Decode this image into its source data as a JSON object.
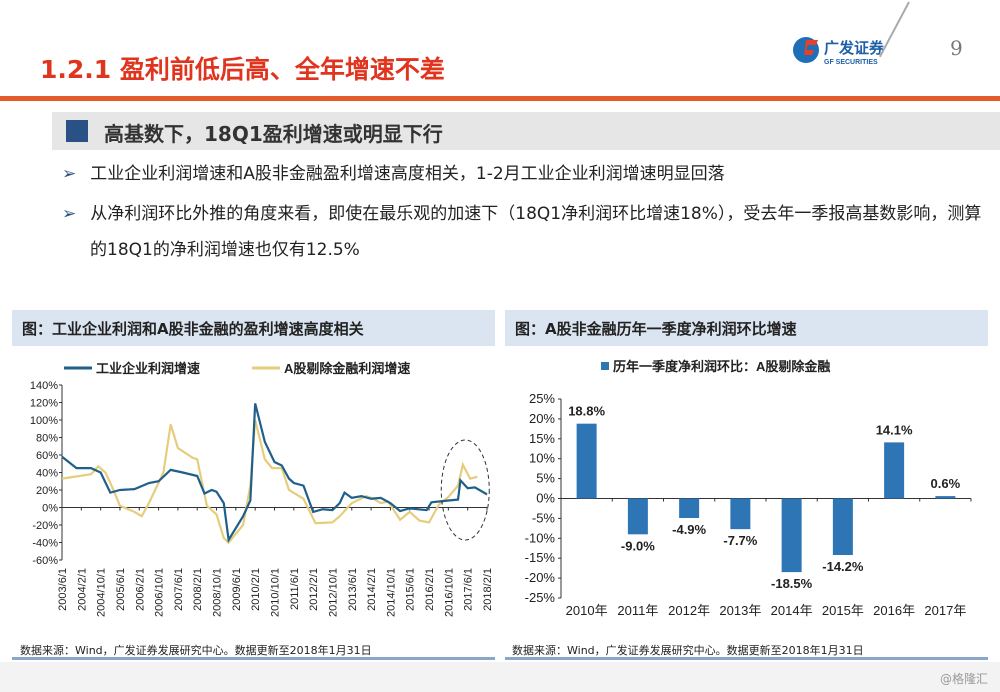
{
  "header": {
    "title": "1.2.1 盈利前低后高、全年增速不差",
    "page_number": "9",
    "logo_cn": "广发证券",
    "logo_en": "GF SECURITIES"
  },
  "section": {
    "heading": "高基数下，18Q1盈利增速或明显下行"
  },
  "bullets": [
    "工业企业利润增速和A股非金融盈利增速高度相关，1-2月工业企业利润增速明显回落",
    "从净利润环比外推的角度来看，即使在最乐观的加速下（18Q1净利润环比增速18%），受去年一季报高基数影响，测算的18Q1的净利润增速也仅有12.5%"
  ],
  "left_panel": {
    "title": "图：工业企业利润和A股非金融的盈利增速高度相关",
    "source": "数据来源：Wind，广发证券发展研究中心。数据更新至2018年1月31日"
  },
  "right_panel": {
    "title": "图：A股非金融历年一季度净利润环比增速",
    "source": "数据来源：Wind，广发证券发展研究中心。数据更新至2018年1月31日"
  },
  "watermark": "@格隆汇",
  "colors": {
    "accent": "#e0341e",
    "blue": "#1f5f8b",
    "yellow": "#e6cd7e",
    "bar": "#2e75b6"
  },
  "chart_data": [
    {
      "type": "line",
      "legend_position": "top",
      "x_ticks": [
        "2003/6/1",
        "2004/2/1",
        "2004/10/1",
        "2005/6/1",
        "2006/2/1",
        "2006/10/1",
        "2007/6/1",
        "2008/2/1",
        "2008/10/1",
        "2009/6/1",
        "2010/2/1",
        "2010/10/1",
        "2011/6/1",
        "2012/2/1",
        "2012/10/1",
        "2013/6/1",
        "2014/2/1",
        "2014/10/1",
        "2015/6/1",
        "2016/2/1",
        "2016/10/1",
        "2017/6/1",
        "2018/2/1"
      ],
      "y_ticks": [
        "140%",
        "120%",
        "100%",
        "80%",
        "60%",
        "40%",
        "20%",
        "0%",
        "-20%",
        "-40%",
        "-60%"
      ],
      "ylim": [
        -60,
        140
      ],
      "annotation": "dashed ellipse around 2016/10–2018/2",
      "series": [
        {
          "name": "工业企业利润增速",
          "color": "#1f5f8b",
          "points": [
            [
              "2003-06",
              58
            ],
            [
              "2003-12",
              45
            ],
            [
              "2004-06",
              45
            ],
            [
              "2004-10",
              40
            ],
            [
              "2005-02",
              17
            ],
            [
              "2005-06",
              20
            ],
            [
              "2005-12",
              21
            ],
            [
              "2006-06",
              28
            ],
            [
              "2006-10",
              30
            ],
            [
              "2007-03",
              43
            ],
            [
              "2007-08",
              40
            ],
            [
              "2008-02",
              36
            ],
            [
              "2008-05",
              16
            ],
            [
              "2008-08",
              20
            ],
            [
              "2008-10",
              18
            ],
            [
              "2009-01",
              5
            ],
            [
              "2009-03",
              -37
            ],
            [
              "2009-09",
              -10
            ],
            [
              "2009-12",
              8
            ],
            [
              "2010-02",
              119
            ],
            [
              "2010-06",
              75
            ],
            [
              "2010-10",
              52
            ],
            [
              "2011-01",
              48
            ],
            [
              "2011-04",
              33
            ],
            [
              "2011-06",
              28
            ],
            [
              "2011-10",
              25
            ],
            [
              "2012-02",
              -5
            ],
            [
              "2012-06",
              -2
            ],
            [
              "2012-10",
              -3
            ],
            [
              "2013-01",
              5
            ],
            [
              "2013-03",
              17
            ],
            [
              "2013-06",
              11
            ],
            [
              "2013-10",
              13
            ],
            [
              "2014-02",
              10
            ],
            [
              "2014-06",
              11
            ],
            [
              "2014-10",
              5
            ],
            [
              "2015-02",
              -4
            ],
            [
              "2015-06",
              -1
            ],
            [
              "2016-01",
              -3
            ],
            [
              "2016-03",
              6
            ],
            [
              "2016-10",
              8
            ],
            [
              "2017-02",
              9
            ],
            [
              "2017-03",
              31
            ],
            [
              "2017-06",
              22
            ],
            [
              "2017-09",
              23
            ],
            [
              "2018-02",
              15
            ]
          ]
        },
        {
          "name": "A股剔除金融利润增速",
          "color": "#e6cd7e",
          "points": [
            [
              "2003-06",
              33
            ],
            [
              "2004-06",
              38
            ],
            [
              "2004-09",
              47
            ],
            [
              "2004-12",
              40
            ],
            [
              "2005-03",
              22
            ],
            [
              "2005-06",
              2
            ],
            [
              "2005-12",
              -5
            ],
            [
              "2006-03",
              -10
            ],
            [
              "2006-06",
              5
            ],
            [
              "2006-12",
              40
            ],
            [
              "2007-03",
              95
            ],
            [
              "2007-06",
              68
            ],
            [
              "2007-12",
              57
            ],
            [
              "2008-02",
              55
            ],
            [
              "2008-06",
              2
            ],
            [
              "2008-10",
              -8
            ],
            [
              "2009-01",
              -35
            ],
            [
              "2009-03",
              -40
            ],
            [
              "2009-09",
              -20
            ],
            [
              "2009-12",
              25
            ],
            [
              "2010-02",
              100
            ],
            [
              "2010-06",
              55
            ],
            [
              "2010-09",
              45
            ],
            [
              "2011-01",
              45
            ],
            [
              "2011-04",
              20
            ],
            [
              "2011-10",
              10
            ],
            [
              "2012-03",
              -18
            ],
            [
              "2012-10",
              -17
            ],
            [
              "2013-01",
              -10
            ],
            [
              "2013-06",
              5
            ],
            [
              "2013-12",
              13
            ],
            [
              "2014-03",
              10
            ],
            [
              "2014-06",
              5
            ],
            [
              "2014-09",
              7
            ],
            [
              "2015-02",
              -14
            ],
            [
              "2015-06",
              -5
            ],
            [
              "2015-10",
              -15
            ],
            [
              "2016-02",
              -17
            ],
            [
              "2016-06",
              3
            ],
            [
              "2016-10",
              12
            ],
            [
              "2017-02",
              25
            ],
            [
              "2017-04",
              49
            ],
            [
              "2017-07",
              33
            ],
            [
              "2017-10",
              35
            ]
          ]
        }
      ]
    },
    {
      "type": "bar",
      "legend_position": "top",
      "series": [
        {
          "name": "历年一季度净利润环比：A股剔除金融",
          "values": [
            18.8,
            -9.0,
            -4.9,
            -7.7,
            -18.5,
            -14.2,
            14.1,
            0.6
          ]
        }
      ],
      "categories": [
        "2010年",
        "2011年",
        "2012年",
        "2013年",
        "2014年",
        "2015年",
        "2016年",
        "2017年"
      ],
      "data_labels": [
        "18.8%",
        "-9.0%",
        "-4.9%",
        "-7.7%",
        "-18.5%",
        "-14.2%",
        "14.1%",
        "0.6%"
      ],
      "y_ticks": [
        "25%",
        "20%",
        "15%",
        "10%",
        "5%",
        "0%",
        "-5%",
        "-10%",
        "-15%",
        "-20%",
        "-25%"
      ],
      "ylim": [
        -25,
        25
      ]
    }
  ]
}
